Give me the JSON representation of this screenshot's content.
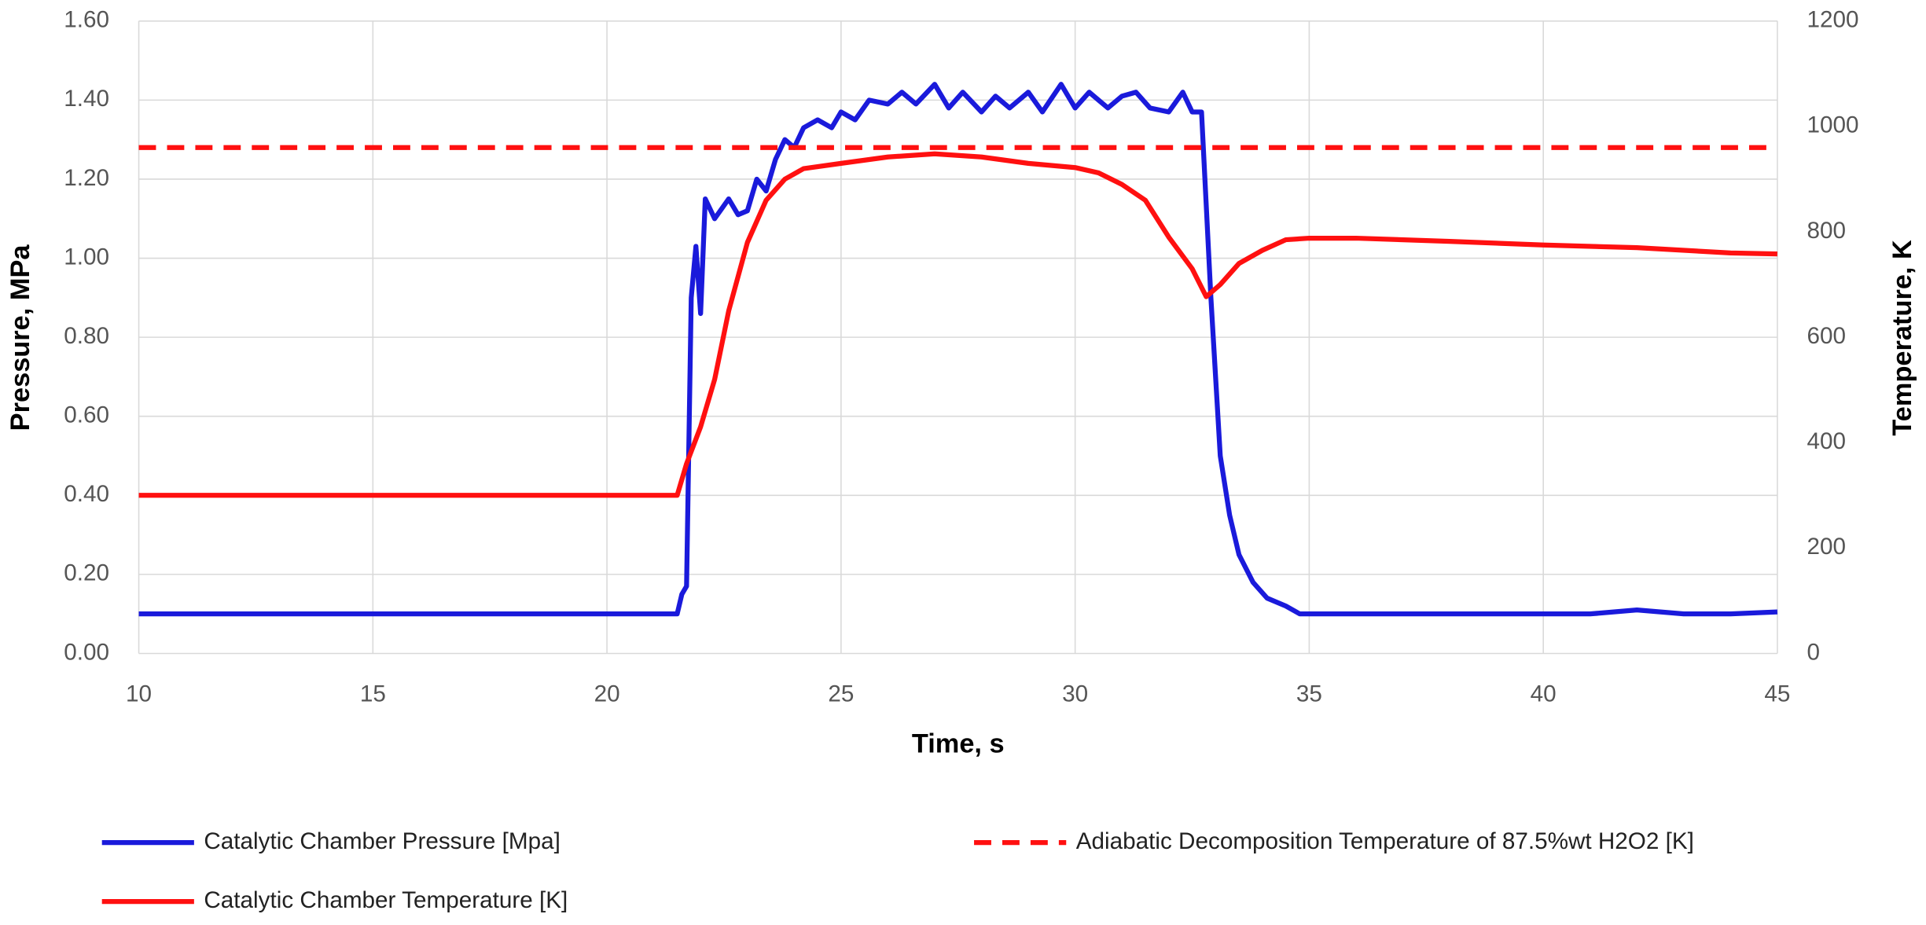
{
  "chart_data": {
    "type": "line",
    "xlabel": "Time, s",
    "ylabel": "Pressure, MPa",
    "y2label": "Temperature, K",
    "xlim": [
      10,
      45
    ],
    "xticks": [
      10,
      15,
      20,
      25,
      30,
      35,
      40,
      45
    ],
    "ylim": [
      0,
      1.6
    ],
    "yticks": [
      {
        "value": 0,
        "label": "0.00"
      },
      {
        "value": 0.2,
        "label": "0.20"
      },
      {
        "value": 0.4,
        "label": "0.40"
      },
      {
        "value": 0.6,
        "label": "0.60"
      },
      {
        "value": 0.8,
        "label": "0.80"
      },
      {
        "value": 1.0,
        "label": "1.00"
      },
      {
        "value": 1.2,
        "label": "1.20"
      },
      {
        "value": 1.4,
        "label": "1.40"
      },
      {
        "value": 1.6,
        "label": "1.60"
      }
    ],
    "y2lim": [
      0,
      1200
    ],
    "y2ticks": [
      0,
      200,
      400,
      600,
      800,
      1000,
      1200
    ],
    "grid": true,
    "legend": "bottom",
    "series": [
      {
        "name": "Catalytic Chamber Pressure [Mpa]",
        "color": "#1a1adb",
        "axis": "y",
        "dashed": false,
        "x": [
          10,
          11,
          12,
          13,
          14,
          15,
          16,
          17,
          18,
          19,
          20,
          21,
          21.5,
          21.6,
          21.7,
          21.8,
          21.9,
          22.0,
          22.1,
          22.3,
          22.6,
          22.8,
          23.0,
          23.2,
          23.4,
          23.6,
          23.8,
          24.0,
          24.2,
          24.5,
          24.8,
          25.0,
          25.3,
          25.6,
          26.0,
          26.3,
          26.6,
          27.0,
          27.3,
          27.6,
          28.0,
          28.3,
          28.6,
          29.0,
          29.3,
          29.7,
          30.0,
          30.3,
          30.7,
          31.0,
          31.3,
          31.6,
          32.0,
          32.3,
          32.5,
          32.7,
          32.9,
          33.1,
          33.3,
          33.5,
          33.8,
          34.1,
          34.5,
          34.8,
          35,
          36,
          37,
          38,
          39,
          40,
          41,
          42,
          43,
          44,
          45
        ],
        "values": [
          0.1,
          0.1,
          0.1,
          0.1,
          0.1,
          0.1,
          0.1,
          0.1,
          0.1,
          0.1,
          0.1,
          0.1,
          0.1,
          0.15,
          0.17,
          0.9,
          1.03,
          0.86,
          1.15,
          1.1,
          1.15,
          1.11,
          1.12,
          1.2,
          1.17,
          1.25,
          1.3,
          1.28,
          1.33,
          1.35,
          1.33,
          1.37,
          1.35,
          1.4,
          1.39,
          1.42,
          1.39,
          1.44,
          1.38,
          1.42,
          1.37,
          1.41,
          1.38,
          1.42,
          1.37,
          1.44,
          1.38,
          1.42,
          1.38,
          1.41,
          1.42,
          1.38,
          1.37,
          1.42,
          1.37,
          1.37,
          0.9,
          0.5,
          0.35,
          0.25,
          0.18,
          0.14,
          0.12,
          0.1,
          0.1,
          0.1,
          0.1,
          0.1,
          0.1,
          0.1,
          0.1,
          0.11,
          0.1,
          0.1,
          0.105
        ]
      },
      {
        "name": "Catalytic Chamber Temperature [K]",
        "color": "#ff1010",
        "axis": "y2",
        "dashed": false,
        "x": [
          10,
          15,
          20,
          21.5,
          21.7,
          22.0,
          22.3,
          22.6,
          23.0,
          23.4,
          23.8,
          24.2,
          25,
          26,
          27,
          28,
          29,
          30,
          30.5,
          31,
          31.5,
          32,
          32.5,
          32.8,
          33.1,
          33.5,
          34,
          34.5,
          35,
          36,
          38,
          40,
          42,
          44,
          45
        ],
        "values": [
          300,
          300,
          300,
          300,
          360,
          430,
          520,
          650,
          780,
          860,
          900,
          920,
          930,
          942,
          948,
          942,
          930,
          922,
          912,
          890,
          860,
          790,
          730,
          677,
          700,
          740,
          765,
          785,
          788,
          788,
          782,
          775,
          770,
          760,
          758
        ]
      },
      {
        "name": "Adiabatic Decomposition Temperature of 87.5%wt H2O2 [K]",
        "color": "#ff1010",
        "axis": "y2",
        "dashed": true,
        "x": [
          10,
          45
        ],
        "values": [
          960,
          960
        ]
      }
    ]
  }
}
